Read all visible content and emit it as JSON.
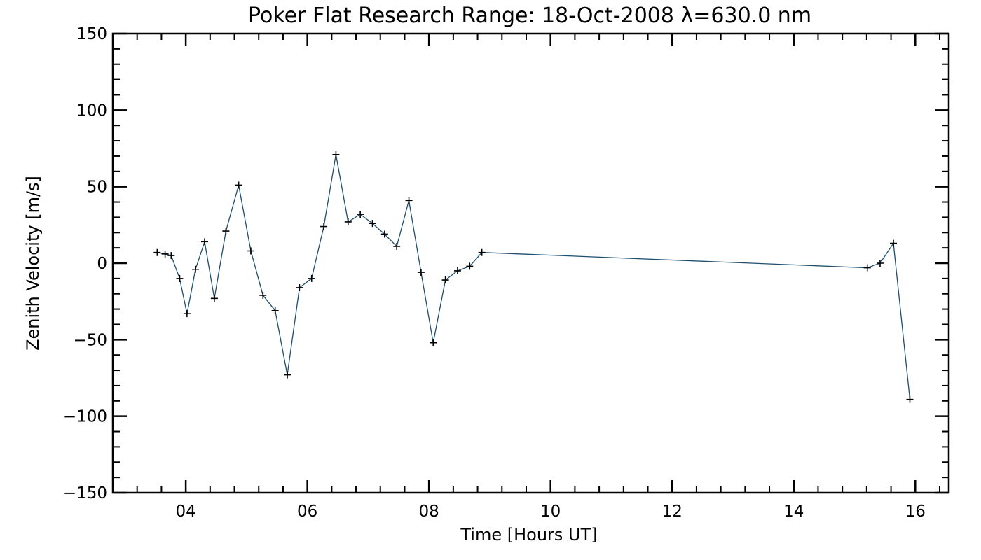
{
  "chart_data": {
    "type": "line",
    "title": "Poker Flat Research Range: 18-Oct-2008 λ=630.0 nm",
    "xlabel": "Time [Hours UT]",
    "ylabel": "Zenith Velocity [m/s]",
    "xlim": [
      2.8,
      16.55
    ],
    "ylim": [
      -150,
      150
    ],
    "x_ticks": [
      4,
      6,
      8,
      10,
      12,
      14,
      16
    ],
    "x_tick_labels": [
      "04",
      "06",
      "08",
      "10",
      "12",
      "14",
      "16"
    ],
    "y_ticks": [
      -150,
      -100,
      -50,
      0,
      50,
      100,
      150
    ],
    "y_tick_labels": [
      "−150",
      "−100",
      "−50",
      "0",
      "50",
      "100",
      "150"
    ],
    "grid": false,
    "colors": {
      "line": "#1f4e6e",
      "marker": "#000000",
      "axes": "#000000"
    },
    "series": [
      {
        "marker": "plus",
        "x": [
          3.53,
          3.66,
          3.76,
          3.9,
          4.02,
          4.16,
          4.31,
          4.47,
          4.66,
          4.87,
          5.07,
          5.27,
          5.47,
          5.67,
          5.87,
          6.07,
          6.27,
          6.47,
          6.67,
          6.87,
          7.07,
          7.27,
          7.47,
          7.67,
          7.87,
          8.07,
          8.27,
          8.47,
          8.67,
          8.87,
          15.21,
          15.42,
          15.64,
          15.91
        ],
        "y": [
          7,
          6,
          5,
          -10,
          -33,
          -4,
          14,
          -23,
          21,
          51,
          8,
          -21,
          -31,
          -73,
          -16,
          -10,
          24,
          71,
          27,
          32,
          26,
          19,
          11,
          41,
          -6,
          -52,
          -11,
          -5,
          -2,
          7,
          -3,
          0,
          13,
          -89
        ]
      }
    ]
  }
}
